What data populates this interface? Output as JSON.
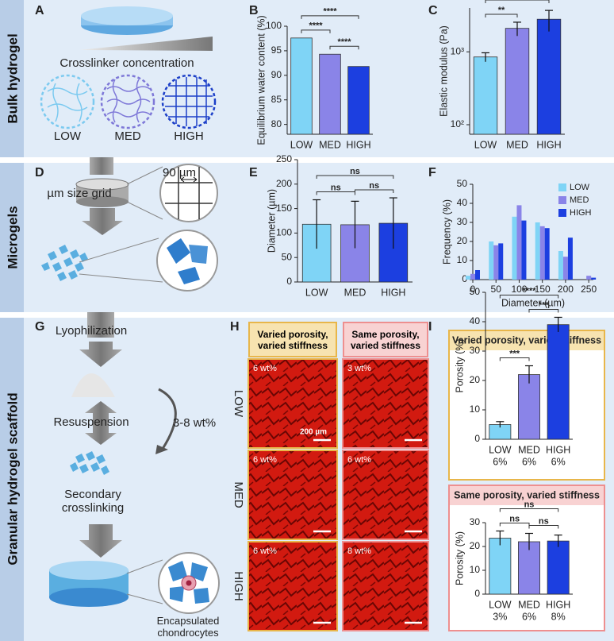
{
  "side_labels": [
    "Bulk hydrogel",
    "Microgels",
    "Granular hydrogel scaffold"
  ],
  "panel_letters": [
    "A",
    "B",
    "C",
    "D",
    "E",
    "F",
    "G",
    "H",
    "I"
  ],
  "panel_a": {
    "caption": "Crosslinker concentration",
    "labels": [
      "LOW",
      "MED",
      "HIGH"
    ]
  },
  "panel_d": {
    "grid_label": "µm size grid",
    "mesh_size": "90 µm"
  },
  "panel_g": {
    "steps": [
      "Lyophilization",
      "Resuspension",
      "Secondary crosslinking"
    ],
    "concentration": "3-8 wt%",
    "cells": "Encapsulated chondrocytes"
  },
  "panel_h": {
    "columns": [
      {
        "title": "Varied porosity, varied stiffness",
        "wt": [
          "6 wt%",
          "6 wt%",
          "6 wt%"
        ]
      },
      {
        "title": "Same porosity, varied stiffness",
        "wt": [
          "3 wt%",
          "6 wt%",
          "8 wt%"
        ]
      }
    ],
    "rows": [
      "LOW",
      "MED",
      "HIGH"
    ],
    "scale_bar": "200 µm"
  },
  "chart_data": [
    {
      "type": "bar",
      "ylabel": "Equilibrium water content (%)",
      "categories": [
        "LOW",
        "MED",
        "HIGH"
      ],
      "values": [
        97.6,
        94.3,
        91.8
      ],
      "colors": [
        "#7fd4f6",
        "#8a84e8",
        "#1c3fe0"
      ],
      "ylim": [
        78,
        100
      ],
      "yticks": [
        80,
        85,
        90,
        95,
        100
      ],
      "annotations": [
        "****",
        "****",
        "****"
      ]
    },
    {
      "type": "bar",
      "ylabel": "Elastic modulus (Pa)",
      "categories": [
        "LOW",
        "MED",
        "HIGH"
      ],
      "values": [
        850,
        2100,
        2800
      ],
      "errors": [
        120,
        450,
        900
      ],
      "colors": [
        "#7fd4f6",
        "#8a84e8",
        "#1c3fe0"
      ],
      "log_scale": true,
      "ylim": [
        74,
        4000
      ],
      "yticks": [
        {
          "value": 100,
          "label": "10²"
        },
        {
          "value": 1000,
          "label": "10³"
        }
      ],
      "annotations": [
        "**",
        "**"
      ]
    },
    {
      "type": "bar",
      "ylabel": "Diameter (µm)",
      "categories": [
        "LOW",
        "MED",
        "HIGH"
      ],
      "values": [
        118,
        117,
        120
      ],
      "errors": [
        50,
        48,
        52
      ],
      "colors": [
        "#7fd4f6",
        "#8a84e8",
        "#1c3fe0"
      ],
      "ylim": [
        0,
        250
      ],
      "yticks": [
        0,
        50,
        100,
        150,
        200,
        250
      ],
      "annotations": [
        "ns",
        "ns",
        "ns"
      ]
    },
    {
      "type": "histogram",
      "xlabel": "Diameter (µm)",
      "ylabel": "Frequency (%)",
      "x": [
        0,
        50,
        100,
        150,
        200,
        250
      ],
      "series": [
        {
          "name": "LOW",
          "color": "#7fd4f6",
          "values": [
            2,
            20,
            33,
            30,
            15,
            0
          ]
        },
        {
          "name": "MED",
          "color": "#8a84e8",
          "values": [
            3,
            18,
            39,
            28,
            12,
            2
          ]
        },
        {
          "name": "HIGH",
          "color": "#1c3fe0",
          "values": [
            5,
            19,
            31,
            27,
            22,
            1
          ]
        }
      ],
      "xlim": [
        0,
        260
      ],
      "xticks": [
        0,
        50,
        100,
        150,
        200,
        250
      ],
      "ylim": [
        0,
        50
      ],
      "yticks": [
        0,
        10,
        20,
        30,
        40,
        50
      ],
      "legend": "upper right"
    },
    {
      "type": "bar",
      "title": "Varied porosity, varied stiffness",
      "ylabel": "Porosity (%)",
      "categories": [
        "LOW",
        "MED",
        "HIGH"
      ],
      "x_sublabels": [
        "6%",
        "6%",
        "6%"
      ],
      "values": [
        5,
        22,
        39
      ],
      "errors": [
        1,
        3,
        2.5
      ],
      "colors": [
        "#7fd4f6",
        "#8a84e8",
        "#1c3fe0"
      ],
      "ylim": [
        0,
        50
      ],
      "yticks": [
        0,
        10,
        20,
        30,
        40,
        50
      ],
      "annotations": [
        "***",
        "***",
        "****"
      ]
    },
    {
      "type": "bar",
      "title": "Same porosity, varied stiffness",
      "ylabel": "Porosity (%)",
      "categories": [
        "LOW",
        "MED",
        "HIGH"
      ],
      "x_sublabels": [
        "3%",
        "6%",
        "8%"
      ],
      "values": [
        23.5,
        22,
        22.3
      ],
      "errors": [
        3,
        3.5,
        2.5
      ],
      "colors": [
        "#7fd4f6",
        "#8a84e8",
        "#1c3fe0"
      ],
      "ylim": [
        0,
        30
      ],
      "yticks": [
        0,
        10,
        20,
        30
      ],
      "annotations": [
        "ns",
        "ns",
        "ns"
      ]
    }
  ]
}
